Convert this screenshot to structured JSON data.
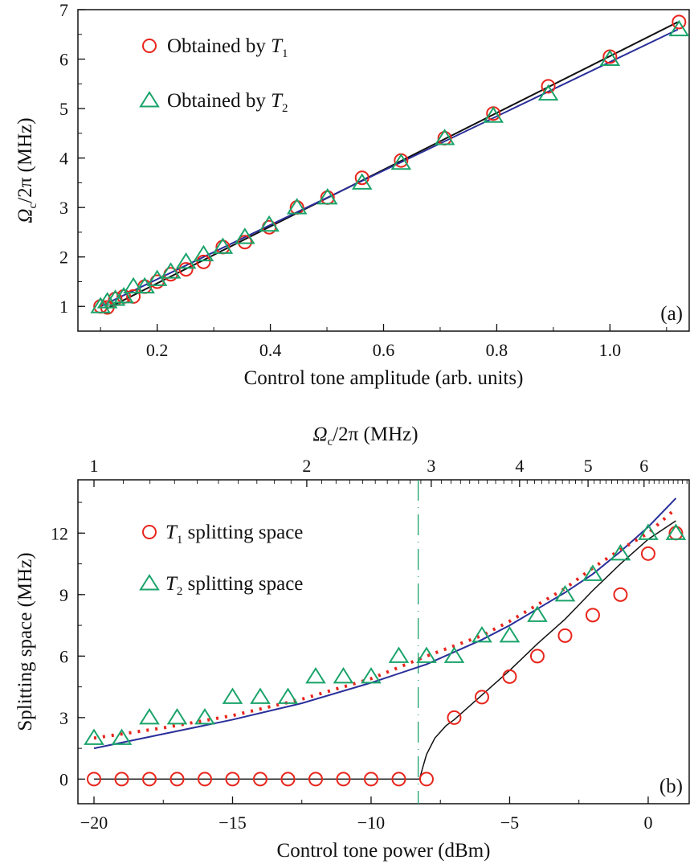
{
  "colors": {
    "t1": "#e8251c",
    "t2": "#1aa36a",
    "fit_black": "#111111",
    "fit_blue": "#2a2f9a",
    "dotted_red": "#e8251c",
    "dashed": "#1aa36a"
  },
  "chart_data": [
    {
      "type": "scatter",
      "panel_label": "(a)",
      "xlabel": "Control tone amplitude (arb. units)",
      "ylabel": {
        "main": "Ω",
        "sub": "c",
        "rest": "/2π (MHz)"
      },
      "xlim": [
        0.06,
        1.14
      ],
      "ylim": [
        0.5,
        7
      ],
      "xticks": [
        0.2,
        0.4,
        0.6,
        0.8,
        1.0
      ],
      "xtick_labels": [
        "0.2",
        "0.4",
        "0.6",
        "0.8",
        "1.0"
      ],
      "yticks": [
        1,
        2,
        3,
        4,
        5,
        6,
        7
      ],
      "ytick_labels": [
        "1",
        "2",
        "3",
        "4",
        "5",
        "6",
        "7"
      ],
      "legend_placement": "top-left",
      "legend": [
        {
          "prefix": "Obtained by ",
          "var": "T",
          "sub": "1",
          "marker": "circle"
        },
        {
          "prefix": "Obtained by ",
          "var": "T",
          "sub": "2",
          "marker": "triangle"
        }
      ],
      "x": [
        0.1,
        0.112,
        0.126,
        0.141,
        0.158,
        0.178,
        0.2,
        0.224,
        0.251,
        0.282,
        0.316,
        0.355,
        0.398,
        0.447,
        0.501,
        0.562,
        0.631,
        0.708,
        0.794,
        0.891,
        1.0,
        1.122
      ],
      "series": [
        {
          "marker": "circle",
          "values": [
            1.0,
            0.98,
            1.15,
            1.2,
            1.2,
            1.4,
            1.5,
            1.65,
            1.75,
            1.9,
            2.2,
            2.3,
            2.6,
            3.0,
            3.2,
            3.6,
            3.95,
            4.4,
            4.9,
            5.45,
            6.05,
            6.75
          ]
        },
        {
          "marker": "triangle",
          "values": [
            1.0,
            1.1,
            1.15,
            1.2,
            1.4,
            1.4,
            1.55,
            1.7,
            1.9,
            2.05,
            2.2,
            2.4,
            2.65,
            3.0,
            3.2,
            3.5,
            3.9,
            4.4,
            4.85,
            5.3,
            6.0,
            6.6
          ]
        }
      ],
      "fits": [
        {
          "style": "black",
          "x": [
            0.11,
            1.12
          ],
          "y": [
            0.95,
            6.75
          ]
        },
        {
          "style": "blue",
          "x": [
            0.1,
            1.12
          ],
          "y": [
            1.0,
            6.6
          ]
        }
      ]
    },
    {
      "type": "scatter",
      "panel_label": "(b)",
      "xlabel": "Control tone power (dBm)",
      "ylabel": "Splitting space (MHz)",
      "top_xlabel": {
        "main": "Ω",
        "sub": "c",
        "rest": "/2π (MHz)"
      },
      "top_axis_scale": "log",
      "top_xticks": [
        1,
        2,
        3,
        4,
        5,
        6
      ],
      "top_xtick_labels": [
        "1",
        "2",
        "3",
        "4",
        "5",
        "6"
      ],
      "xlim": [
        -20.58,
        1.48
      ],
      "ylim": [
        -1.2,
        14.6
      ],
      "xticks": [
        -20,
        -15,
        -10,
        -5,
        0
      ],
      "xtick_labels": [
        "−20",
        "−15",
        "−10",
        "−5",
        "0"
      ],
      "yticks": [
        0,
        3,
        6,
        9,
        12
      ],
      "ytick_labels": [
        "0",
        "3",
        "6",
        "9",
        "12"
      ],
      "legend_placement": "top-left",
      "legend": [
        {
          "var": "T",
          "sub": "1",
          "suffix": " splitting space",
          "marker": "circle"
        },
        {
          "var": "T",
          "sub": "2",
          "suffix": " splitting space",
          "marker": "triangle"
        }
      ],
      "threshold_x": -8.3,
      "series": [
        {
          "marker": "circle",
          "x": [
            -20,
            -19,
            -18,
            -17,
            -16,
            -15,
            -14,
            -13,
            -12,
            -11,
            -10,
            -9,
            -8,
            -7,
            -6,
            -5,
            -4,
            -3,
            -2,
            -1,
            0,
            1
          ],
          "values": [
            0,
            0,
            0,
            0,
            0,
            0,
            0,
            0,
            0,
            0,
            0,
            0,
            0,
            3,
            4,
            5,
            6,
            7,
            8,
            9,
            11,
            12
          ]
        },
        {
          "marker": "triangle",
          "x": [
            -20,
            -19,
            -18,
            -17,
            -16,
            -15,
            -14,
            -13,
            -12,
            -11,
            -10,
            -9,
            -8,
            -7,
            -6,
            -5,
            -4,
            -3,
            -2,
            -1,
            0,
            1
          ],
          "values": [
            2,
            2,
            3,
            3,
            3,
            4,
            4,
            4,
            5,
            5,
            5,
            6,
            6,
            6,
            7,
            7,
            8,
            9,
            10,
            11,
            12,
            12
          ]
        }
      ],
      "curves": [
        {
          "style": "blue",
          "x": [
            -20,
            -17.5,
            -15,
            -12.5,
            -10,
            -8,
            -6,
            -5,
            -4,
            -3,
            -2,
            -1,
            0,
            1
          ],
          "y": [
            1.5,
            2.2,
            2.9,
            3.7,
            4.7,
            5.6,
            6.8,
            7.5,
            8.3,
            9.1,
            10.0,
            11.1,
            12.3,
            13.7
          ]
        },
        {
          "style": "dotted",
          "x": [
            -20,
            -17.5,
            -15,
            -12.5,
            -10,
            -8,
            -6,
            -5,
            -4,
            -3,
            -2,
            -1,
            0,
            1
          ],
          "y": [
            2.0,
            2.5,
            3.1,
            3.9,
            4.9,
            6.0,
            7.0,
            7.7,
            8.5,
            9.3,
            10.3,
            11.2,
            12.0,
            13.2
          ]
        },
        {
          "style": "black",
          "x": [
            -20,
            -8.25,
            -8.15,
            -8.0,
            -7.7,
            -7.3,
            -7,
            -6,
            -5,
            -4,
            -3,
            -2,
            -1,
            0,
            1
          ],
          "y": [
            0,
            0,
            0.5,
            1.2,
            2.0,
            2.6,
            2.9,
            4.1,
            5.3,
            6.6,
            7.8,
            9.2,
            10.5,
            11.7,
            12.6
          ]
        }
      ]
    }
  ]
}
